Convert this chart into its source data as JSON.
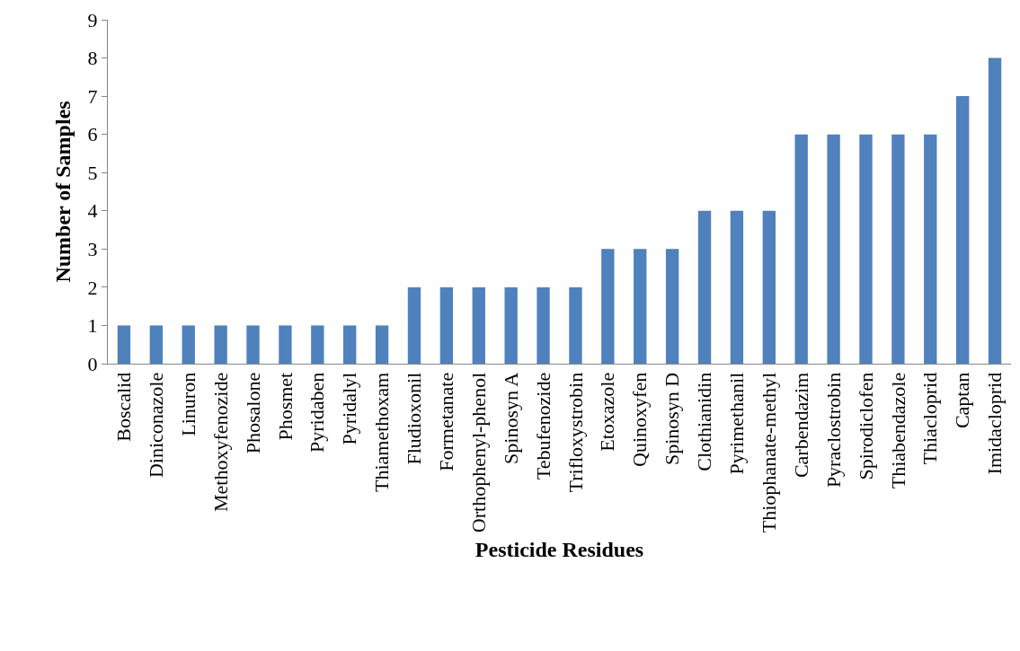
{
  "chart_data": {
    "type": "bar",
    "xlabel": "Pesticide Residues",
    "ylabel": "Number of Samples",
    "categories": [
      "Boscalid",
      "Diniconazole",
      "Linuron",
      "Methoxyfenozide",
      "Phosalone",
      "Phosmet",
      "Pyridaben",
      "Pyridalyl",
      "Thiamethoxam",
      "Fludioxonil",
      "Formetanate",
      "Orthophenyl-phenol",
      "Spinosyn A",
      "Tebufenozide",
      "Trifloxystrobin",
      "Etoxazole",
      "Quinoxyfen",
      "Spinosyn D",
      "Clothianidin",
      "Pyrimethanil",
      "Thiophanate-methyl",
      "Carbendazim",
      "Pyraclostrobin",
      "Spirodiclofen",
      "Thiabendazole",
      "Thiacloprid",
      "Captan",
      "Imidacloprid"
    ],
    "values": [
      1,
      1,
      1,
      1,
      1,
      1,
      1,
      1,
      1,
      2,
      2,
      2,
      2,
      2,
      2,
      3,
      3,
      3,
      4,
      4,
      4,
      6,
      6,
      6,
      6,
      6,
      7,
      8
    ],
    "color": "#4f81bd",
    "ylim": [
      0,
      9
    ],
    "yticks": [
      0,
      1,
      2,
      3,
      4,
      5,
      6,
      7,
      8,
      9
    ]
  }
}
